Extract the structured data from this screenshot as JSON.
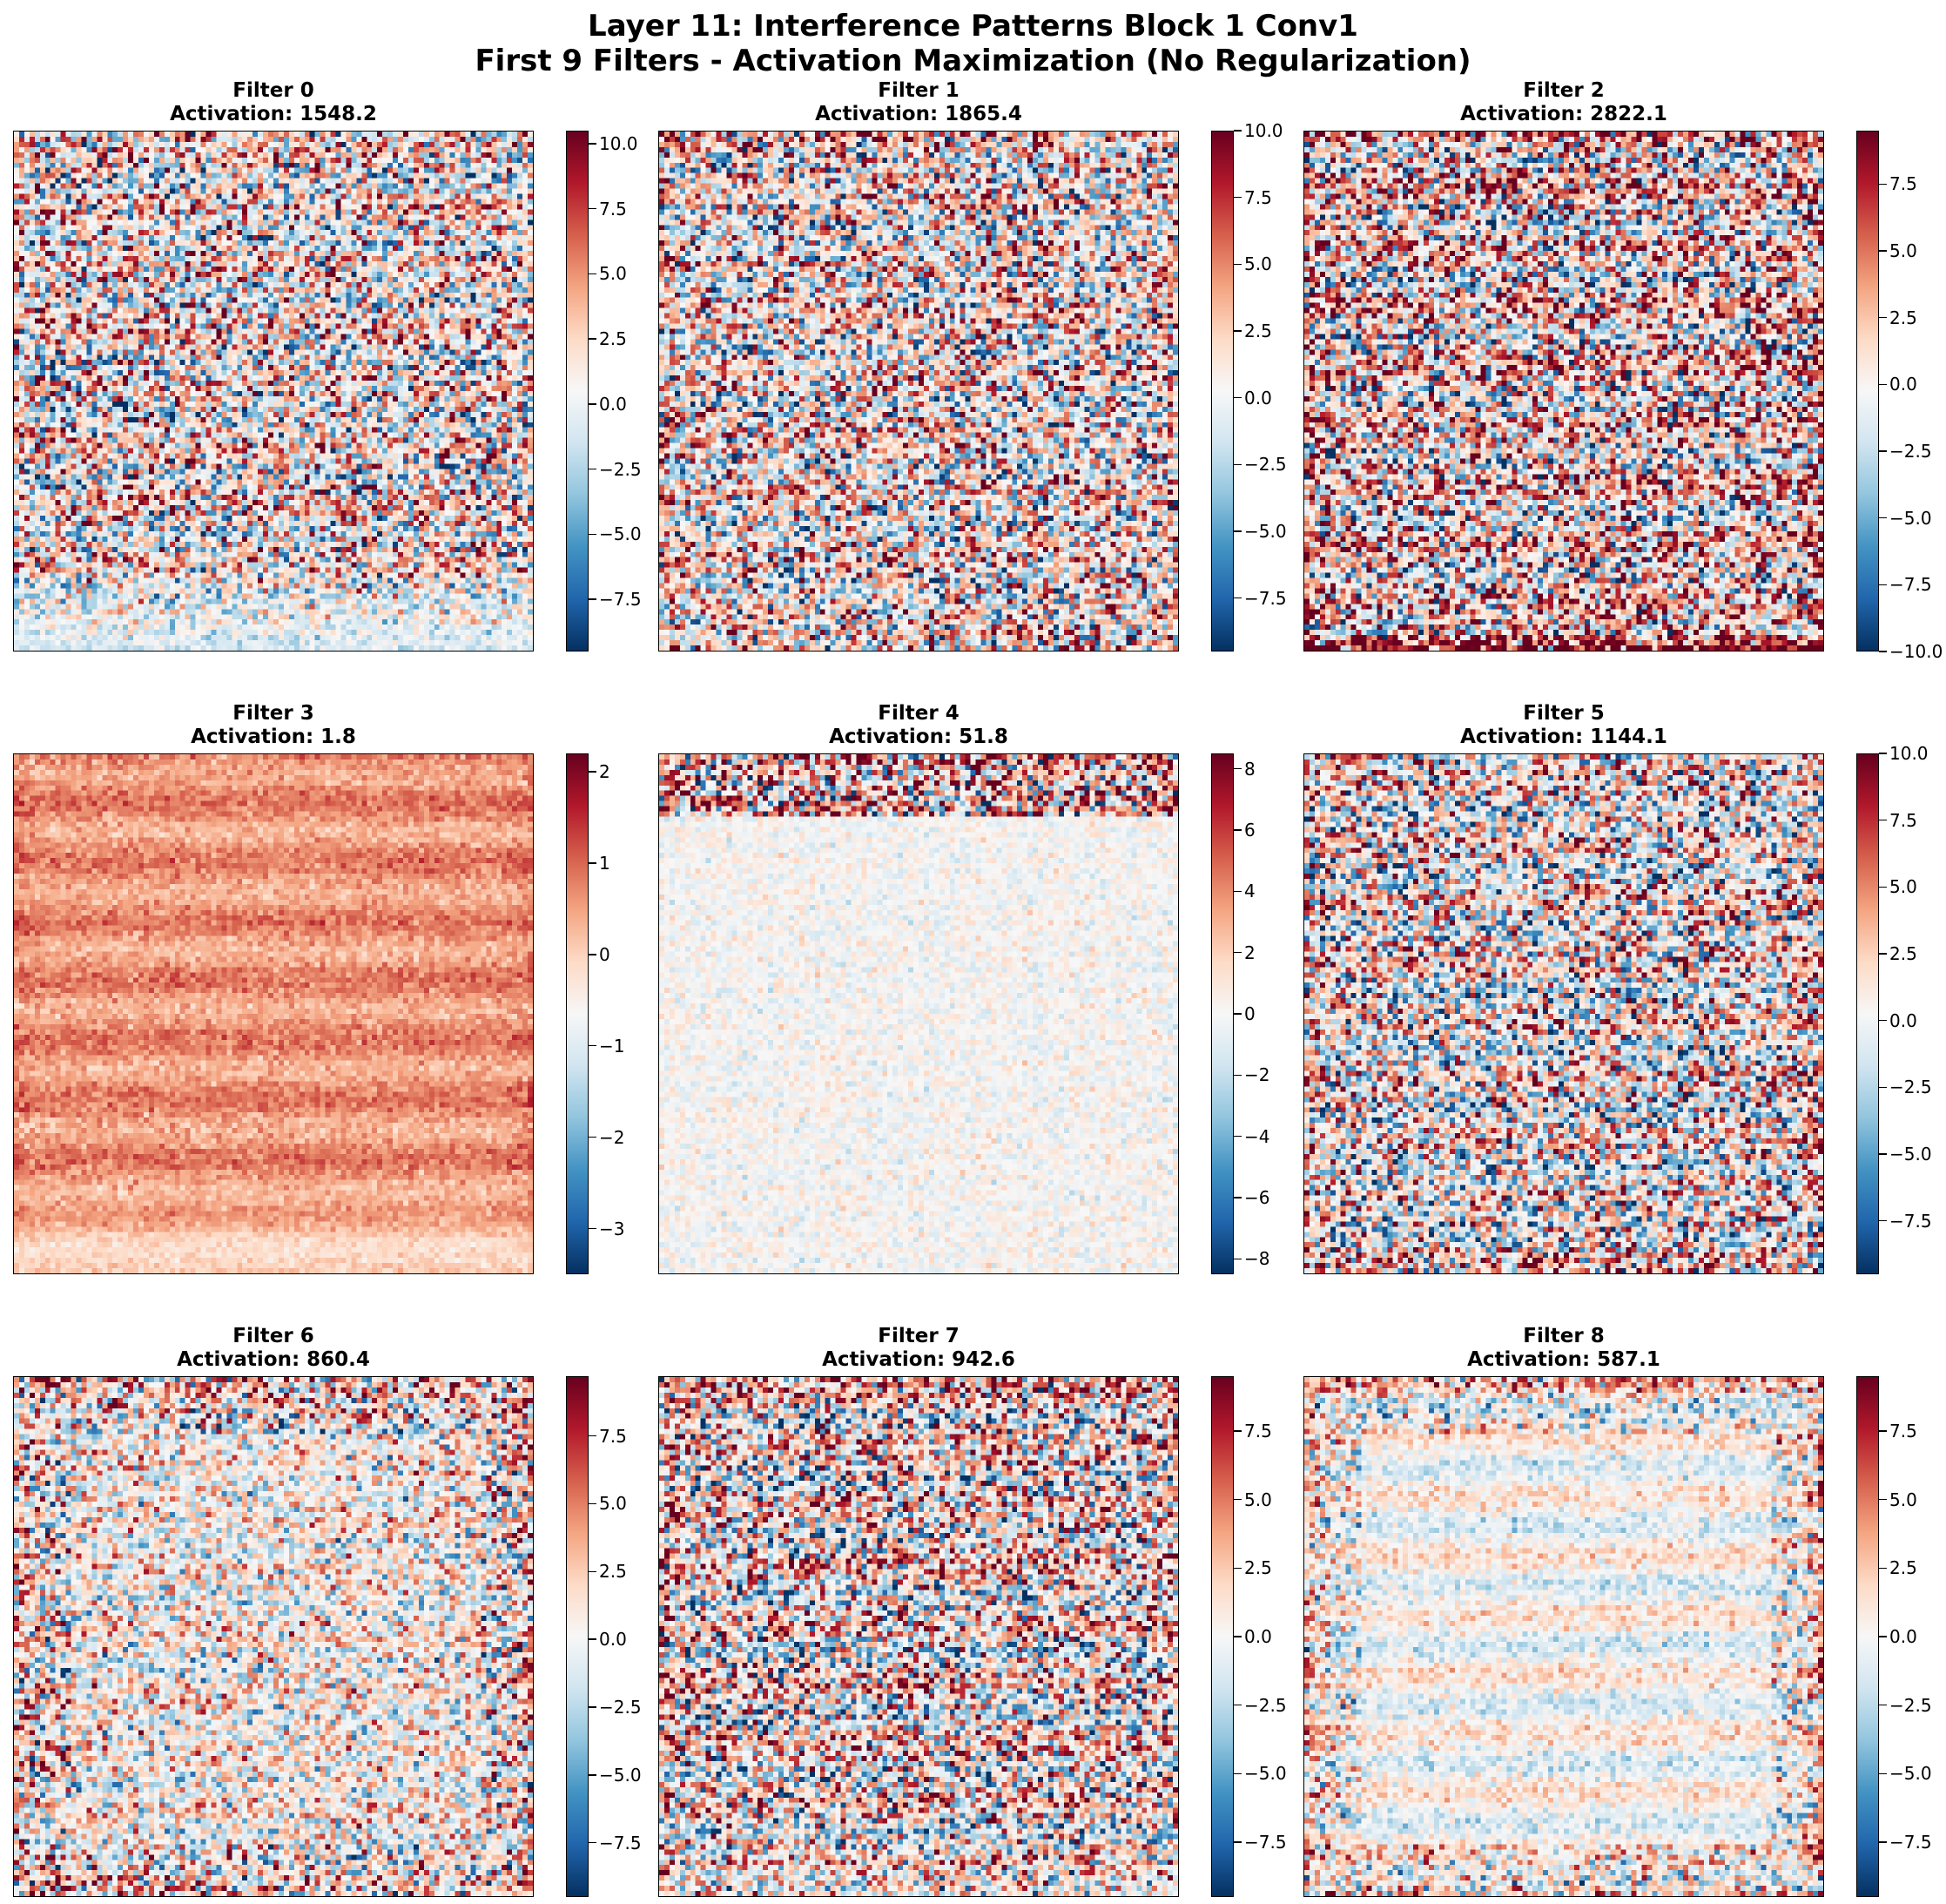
{
  "title_line1": "Layer 11: Interference Patterns Block 1 Conv1",
  "title_line2": "First 9 Filters - Activation Maximization (No Regularization)",
  "colormap": {
    "name": "RdBu_r",
    "low": "#053061",
    "mid": "#f7f7f7",
    "high": "#67001f"
  },
  "chart_data": [
    {
      "type": "heatmap",
      "title": "Filter 0",
      "subtitle": "Activation: 1548.2",
      "vmin": -9.5,
      "vmax": 10.5,
      "ticks": [
        -7.5,
        -5.0,
        -2.5,
        0.0,
        2.5,
        5.0,
        7.5,
        10.0
      ],
      "tick_labels": [
        "−7.5",
        "−5.0",
        "−2.5",
        "0.0",
        "2.5",
        "5.0",
        "7.5",
        "10.0"
      ],
      "pattern": {
        "base": 1.2,
        "noise": 5.0,
        "bottom_fade": 0.85,
        "border_boost": 0.0,
        "center_calm": 0.0,
        "stripes": 0.5
      }
    },
    {
      "type": "heatmap",
      "title": "Filter 1",
      "subtitle": "Activation: 1865.4",
      "vmin": -9.5,
      "vmax": 10.0,
      "ticks": [
        -7.5,
        -5.0,
        -2.5,
        0.0,
        2.5,
        5.0,
        7.5,
        10.0
      ],
      "tick_labels": [
        "−7.5",
        "−5.0",
        "−2.5",
        "0.0",
        "2.5",
        "5.0",
        "7.5",
        "10.0"
      ],
      "pattern": {
        "base": 0.8,
        "noise": 5.0,
        "bottom_fade": 0.0,
        "border_boost": 2.5,
        "center_calm": 0.0,
        "stripes": 0.3
      }
    },
    {
      "type": "heatmap",
      "title": "Filter 2",
      "subtitle": "Activation: 2822.1",
      "vmin": -10.0,
      "vmax": 9.5,
      "ticks": [
        -10.0,
        -7.5,
        -5.0,
        -2.5,
        0.0,
        2.5,
        5.0,
        7.5
      ],
      "tick_labels": [
        "−10.0",
        "−7.5",
        "−5.0",
        "−2.5",
        "0.0",
        "2.5",
        "5.0",
        "7.5"
      ],
      "pattern": {
        "base": 1.0,
        "noise": 5.5,
        "bottom_fade": -1.0,
        "border_boost": 3.5,
        "center_calm": 0.0,
        "stripes": 0.6
      }
    },
    {
      "type": "heatmap",
      "title": "Filter 3",
      "subtitle": "Activation: 1.8",
      "vmin": -3.5,
      "vmax": 2.2,
      "ticks": [
        -3,
        -2,
        -1,
        0,
        1,
        2
      ],
      "tick_labels": [
        "−3",
        "−2",
        "−1",
        "0",
        "1",
        "2"
      ],
      "pattern": {
        "base": 0.6,
        "noise": 0.25,
        "bottom_fade": 0.4,
        "border_boost": 0.3,
        "center_calm": 0.0,
        "stripes": 0.1
      }
    },
    {
      "type": "heatmap",
      "title": "Filter 4",
      "subtitle": "Activation: 51.8",
      "vmin": -8.5,
      "vmax": 8.5,
      "ticks": [
        -8,
        -6,
        -4,
        -2,
        0,
        2,
        4,
        6,
        8
      ],
      "tick_labels": [
        "−8",
        "−6",
        "−4",
        "−2",
        "0",
        "2",
        "4",
        "6",
        "8"
      ],
      "pattern": {
        "base": 0.0,
        "noise": 0.9,
        "bottom_fade": 0.0,
        "border_boost": 0.0,
        "center_calm": 0.0,
        "stripes": 0.0,
        "top_band": 5.0
      }
    },
    {
      "type": "heatmap",
      "title": "Filter 5",
      "subtitle": "Activation: 1144.1",
      "vmin": -9.5,
      "vmax": 10.0,
      "ticks": [
        -7.5,
        -5.0,
        -2.5,
        0.0,
        2.5,
        5.0,
        7.5,
        10.0
      ],
      "tick_labels": [
        "−7.5",
        "−5.0",
        "−2.5",
        "0.0",
        "2.5",
        "5.0",
        "7.5",
        "10.0"
      ],
      "pattern": {
        "base": 0.3,
        "noise": 5.0,
        "bottom_fade": 0.0,
        "border_boost": 3.0,
        "center_calm": 0.0,
        "stripes": 0.4
      }
    },
    {
      "type": "heatmap",
      "title": "Filter 6",
      "subtitle": "Activation: 860.4",
      "vmin": -9.5,
      "vmax": 9.7,
      "ticks": [
        -7.5,
        -5.0,
        -2.5,
        0.0,
        2.5,
        5.0,
        7.5
      ],
      "tick_labels": [
        "−7.5",
        "−5.0",
        "−2.5",
        "0.0",
        "2.5",
        "5.0",
        "7.5"
      ],
      "pattern": {
        "base": 0.4,
        "noise": 4.5,
        "bottom_fade": 0.0,
        "border_boost": 3.0,
        "center_calm": 0.3,
        "stripes": 0.2
      }
    },
    {
      "type": "heatmap",
      "title": "Filter 7",
      "subtitle": "Activation: 942.6",
      "vmin": -9.5,
      "vmax": 9.5,
      "ticks": [
        -7.5,
        -5.0,
        -2.5,
        0.0,
        2.5,
        5.0,
        7.5
      ],
      "tick_labels": [
        "−7.5",
        "−5.0",
        "−2.5",
        "0.0",
        "2.5",
        "5.0",
        "7.5"
      ],
      "pattern": {
        "base": 0.6,
        "noise": 5.0,
        "bottom_fade": 0.3,
        "border_boost": 3.0,
        "center_calm": 0.0,
        "stripes": 0.6
      }
    },
    {
      "type": "heatmap",
      "title": "Filter 8",
      "subtitle": "Activation: 587.1",
      "vmin": -9.5,
      "vmax": 9.5,
      "ticks": [
        -7.5,
        -5.0,
        -2.5,
        0.0,
        2.5,
        5.0,
        7.5
      ],
      "tick_labels": [
        "−7.5",
        "−5.0",
        "−2.5",
        "0.0",
        "2.5",
        "5.0",
        "7.5"
      ],
      "pattern": {
        "base": 0.0,
        "noise": 3.0,
        "bottom_fade": 0.0,
        "border_boost": 4.0,
        "center_calm": 0.55,
        "stripes": 0.5
      }
    }
  ]
}
